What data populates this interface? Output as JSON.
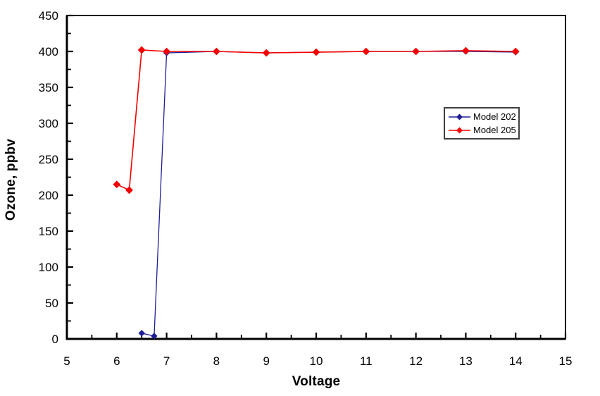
{
  "chart_data": {
    "type": "line",
    "title": "",
    "xlabel": "Voltage",
    "ylabel": "Ozone, ppbv",
    "xlim": [
      5,
      15
    ],
    "ylim": [
      0,
      450
    ],
    "x_major_ticks": [
      5,
      6,
      7,
      8,
      9,
      10,
      11,
      12,
      13,
      14,
      15
    ],
    "x_minor_step": 0.5,
    "y_major_ticks": [
      0,
      50,
      100,
      150,
      200,
      250,
      300,
      350,
      400,
      450
    ],
    "y_minor_step": 25,
    "grid": "off",
    "legend_position": "inside-upper-right",
    "plot_border_color": "#000000",
    "background_color": "#ffffff",
    "series": [
      {
        "name": "Model 202",
        "color": "#1E1E96",
        "marker": "diamond",
        "points": [
          [
            6.5,
            8
          ],
          [
            6.75,
            4
          ],
          [
            7,
            398
          ],
          [
            8,
            400
          ],
          [
            9,
            398
          ],
          [
            10,
            399
          ],
          [
            11,
            400
          ],
          [
            12,
            400
          ],
          [
            13,
            400
          ],
          [
            14,
            399
          ]
        ]
      },
      {
        "name": "Model 205",
        "color": "#F40000",
        "marker": "diamond",
        "points": [
          [
            6,
            215
          ],
          [
            6.25,
            207
          ],
          [
            6.5,
            402
          ],
          [
            7,
            400
          ],
          [
            8,
            400
          ],
          [
            9,
            398
          ],
          [
            10,
            399
          ],
          [
            11,
            400
          ],
          [
            12,
            400
          ],
          [
            13,
            401
          ],
          [
            14,
            400
          ]
        ]
      }
    ]
  }
}
